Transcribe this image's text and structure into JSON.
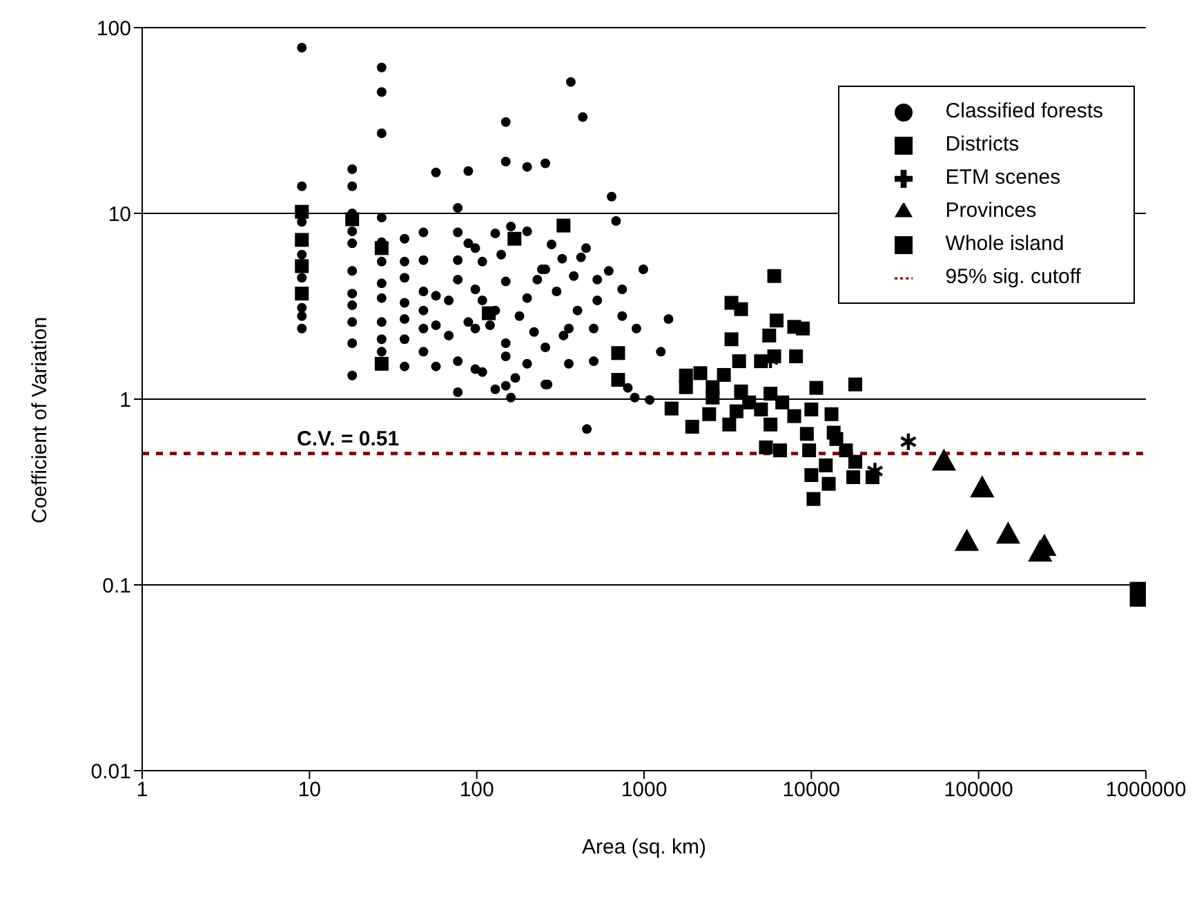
{
  "chart_data": {
    "type": "scatter",
    "xlabel": "Area (sq. km)",
    "ylabel": "Coefficient of Variation",
    "log": "xy",
    "grid": "y",
    "legend": "top right",
    "xlim": [
      1,
      1000000
    ],
    "xticks": [
      1,
      10,
      100,
      1000,
      10000,
      100000,
      1000000
    ],
    "ylim": [
      0.01,
      100
    ],
    "yticks": [
      0.01,
      0.1,
      1,
      10,
      100
    ],
    "annotations": [
      {
        "text": "C.V. = 0.51",
        "x": 17,
        "y": 0.51
      }
    ],
    "series": [
      {
        "name": "Classified forests",
        "marker": "circle",
        "color": "#000000",
        "x": [
          9,
          9,
          9,
          9,
          9,
          9,
          9,
          9,
          18,
          18,
          18,
          18,
          18,
          18,
          18,
          18,
          18,
          18,
          18,
          27,
          27,
          27,
          27,
          27,
          27,
          27,
          27,
          27,
          27,
          27,
          37,
          37,
          37,
          37,
          37,
          37,
          37,
          48,
          48,
          48,
          48,
          48,
          48,
          57,
          57,
          57,
          57,
          68,
          68,
          77,
          77,
          77,
          77,
          77,
          77,
          89,
          89,
          89,
          98,
          98,
          98,
          98,
          108,
          108,
          108,
          129,
          129,
          129,
          149,
          149,
          149,
          149,
          149,
          149,
          160,
          160,
          200,
          200,
          200,
          200,
          257,
          257,
          257,
          257,
          245,
          265,
          324,
          355,
          355,
          365,
          430,
          450,
          500,
          500,
          525,
          525,
          615,
          640,
          680,
          740,
          740,
          800,
          880,
          990,
          1080,
          900,
          1260,
          1400,
          455,
          120,
          140,
          180,
          220,
          300,
          330,
          400,
          170,
          230,
          280,
          380,
          420
        ],
        "values": [
          78,
          14,
          9,
          6,
          4.5,
          3.1,
          2.8,
          2.4,
          17.3,
          14,
          10,
          8,
          6.9,
          4.9,
          3.7,
          3.2,
          2.6,
          2,
          1.34,
          61,
          45,
          27,
          9.5,
          7,
          5.5,
          4.2,
          3.5,
          2.6,
          2.1,
          1.8,
          7.3,
          5.5,
          4.5,
          3.3,
          2.7,
          2.1,
          1.5,
          7.9,
          5.6,
          3.8,
          3,
          2.4,
          1.8,
          16.6,
          3.6,
          2.5,
          1.5,
          3.4,
          2.2,
          10.7,
          7.9,
          5.6,
          4.4,
          1.6,
          1.09,
          16.9,
          6.9,
          2.6,
          6.5,
          3.9,
          2.4,
          1.45,
          5.5,
          3.4,
          1.4,
          7.8,
          3,
          1.13,
          31,
          19,
          4.3,
          2,
          1.7,
          1.18,
          8.5,
          1.02,
          17.8,
          8,
          3.5,
          1.55,
          18.6,
          5,
          1.9,
          1.2,
          5,
          1.2,
          5.7,
          1.55,
          2.4,
          51,
          33,
          6.5,
          2.4,
          1.6,
          4.4,
          3.4,
          4.9,
          12.3,
          9.1,
          3.9,
          2.8,
          1.15,
          1.02,
          5,
          0.99,
          2.4,
          1.8,
          2.7,
          0.69,
          2.5,
          6,
          2.8,
          2.3,
          3.8,
          2.2,
          3,
          1.3,
          4.4,
          6.8,
          4.6,
          5.8
        ]
      },
      {
        "name": "Districts",
        "marker": "square",
        "color": "#000000",
        "x": [
          9,
          9,
          9,
          9,
          18,
          27,
          27,
          118,
          168,
          330,
          700,
          700,
          6000,
          3330,
          3800,
          6200,
          7900,
          8900,
          3330,
          5600,
          8100,
          3700,
          5000,
          6000,
          10700,
          18300,
          1780,
          1780,
          2170,
          2570,
          3000,
          2570,
          3800,
          4250,
          1460,
          1940,
          2450,
          3230,
          3570,
          5000,
          5700,
          5700,
          6700,
          5350,
          6500,
          7900,
          10000,
          9400,
          9700,
          13200,
          13600,
          14100,
          16100,
          18300,
          10000,
          12700,
          17800,
          10300,
          12200,
          23200
        ],
        "values": [
          10.2,
          7.2,
          5.2,
          3.7,
          9.3,
          6.5,
          1.55,
          2.9,
          7.3,
          8.6,
          1.77,
          1.27,
          4.6,
          3.3,
          3.05,
          2.65,
          2.45,
          2.4,
          2.1,
          2.2,
          1.7,
          1.6,
          1.6,
          1.7,
          1.15,
          1.2,
          1.34,
          1.16,
          1.38,
          1.16,
          1.35,
          1.02,
          1.1,
          0.96,
          0.89,
          0.71,
          0.83,
          0.73,
          0.86,
          0.88,
          1.07,
          0.73,
          0.96,
          0.55,
          0.53,
          0.81,
          0.88,
          0.65,
          0.53,
          0.83,
          0.66,
          0.61,
          0.53,
          0.46,
          0.39,
          0.35,
          0.38,
          0.29,
          0.44,
          0.38
        ]
      },
      {
        "name": "ETM scenes",
        "marker": "cross",
        "color": "#000000",
        "x": [
          5700,
          24000,
          38000
        ],
        "values": [
          1.63,
          0.41,
          0.59
        ]
      },
      {
        "name": "Provinces",
        "marker": "triangle",
        "color": "#000000",
        "x": [
          62000,
          105000,
          85000,
          150000,
          247000,
          233000
        ],
        "values": [
          0.46,
          0.33,
          0.17,
          0.186,
          0.16,
          0.149
        ]
      },
      {
        "name": "Whole island",
        "marker": "square",
        "color": "#000000",
        "x": [
          950000
        ],
        "values": [
          0.089
        ]
      },
      {
        "name": "95% sig. cutoff",
        "type": "line",
        "marker": "none",
        "line_style": "dashed",
        "color": "#8b0000",
        "x": [
          1,
          1000000
        ],
        "values": [
          0.51,
          0.51
        ]
      }
    ]
  }
}
